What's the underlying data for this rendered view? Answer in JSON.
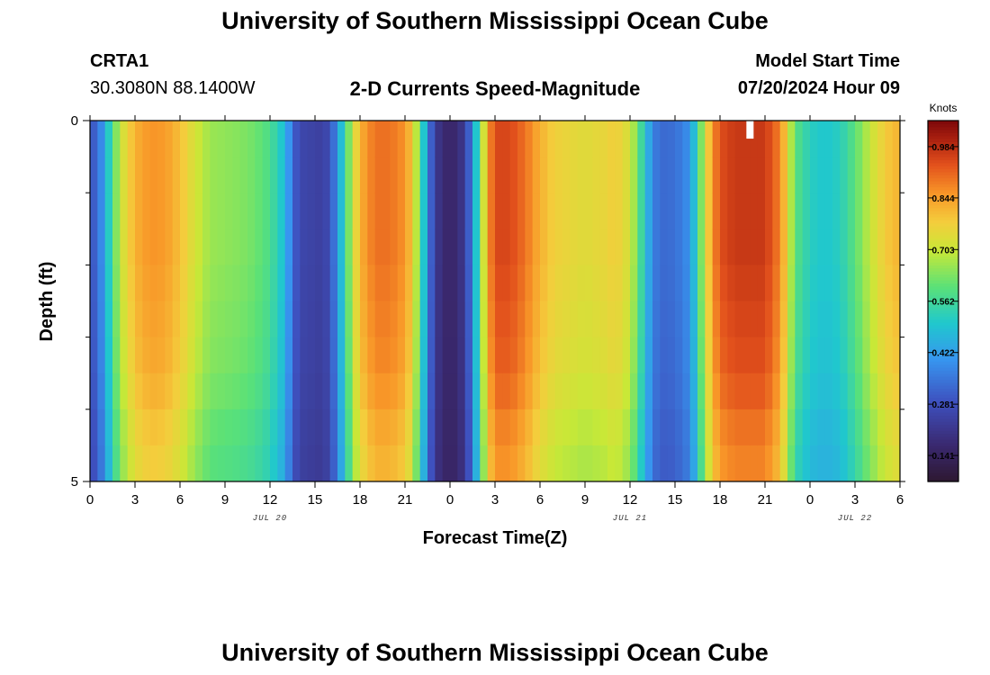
{
  "header": {
    "title": "University of Southern Mississippi Ocean Cube",
    "station_id": "CRTA1",
    "station_coords": "30.3080N  88.1400W",
    "plot_title": "2-D Currents Speed-Magnitude",
    "model_label": "Model Start Time",
    "model_time": "07/20/2024 Hour 09"
  },
  "footer": {
    "title": "University of Southern Mississippi Ocean Cube"
  },
  "chart_data": {
    "type": "heatmap",
    "title": "2-D Currents Speed-Magnitude",
    "xlabel": "Forecast Time(Z)",
    "ylabel": "Depth (ft)",
    "x_unit": "hours since 07/20 00Z",
    "xlim": [
      0,
      54
    ],
    "ylim": [
      0,
      5
    ],
    "x_tick_values": [
      0,
      3,
      6,
      9,
      12,
      15,
      18,
      21,
      24,
      27,
      30,
      33,
      36,
      39,
      42,
      45,
      48,
      51,
      54
    ],
    "x_tick_labels": [
      "0",
      "3",
      "6",
      "9",
      "12",
      "15",
      "18",
      "21",
      "0",
      "3",
      "6",
      "9",
      "12",
      "15",
      "18",
      "21",
      "0",
      "3",
      "6"
    ],
    "day_labels": [
      {
        "text": "JUL 20",
        "x": 12
      },
      {
        "text": "JUL 21",
        "x": 36
      },
      {
        "text": "JUL 22",
        "x": 51
      }
    ],
    "y_tick_labels": [
      {
        "value": 0,
        "label": "0"
      },
      {
        "value": 5,
        "label": "5"
      }
    ],
    "y_minor_ticks": [
      1,
      2,
      3,
      4
    ],
    "colorbar": {
      "label": "Knots",
      "min": 0.07,
      "max": 1.055,
      "ticks": [
        0.141,
        0.281,
        0.422,
        0.562,
        0.703,
        0.844,
        0.984
      ],
      "tick_labels": [
        "0.141",
        "0.281",
        "0.422",
        "0.562",
        "0.703",
        "0.844",
        "0.984"
      ]
    },
    "missing_cell": {
      "x": 44,
      "depth": 0.25
    },
    "time_step_hours": 0.5,
    "depth_levels": 10,
    "key_profile": [
      [
        0,
        0.3
      ],
      [
        0.5,
        0.32
      ],
      [
        1,
        0.45
      ],
      [
        1.5,
        0.58
      ],
      [
        2,
        0.7
      ],
      [
        3,
        0.82
      ],
      [
        4,
        0.86
      ],
      [
        5,
        0.85
      ],
      [
        6,
        0.8
      ],
      [
        7,
        0.72
      ],
      [
        8,
        0.66
      ],
      [
        10,
        0.64
      ],
      [
        11,
        0.62
      ],
      [
        12,
        0.58
      ],
      [
        13,
        0.48
      ],
      [
        13.5,
        0.33
      ],
      [
        14,
        0.26
      ],
      [
        15.5,
        0.24
      ],
      [
        16,
        0.28
      ],
      [
        16.5,
        0.4
      ],
      [
        17,
        0.56
      ],
      [
        17.5,
        0.7
      ],
      [
        18,
        0.82
      ],
      [
        19,
        0.9
      ],
      [
        20,
        0.9
      ],
      [
        21,
        0.86
      ],
      [
        21.5,
        0.78
      ],
      [
        22,
        0.6
      ],
      [
        22.5,
        0.4
      ],
      [
        23,
        0.22
      ],
      [
        24,
        0.15
      ],
      [
        25,
        0.22
      ],
      [
        25.5,
        0.4
      ],
      [
        26,
        0.6
      ],
      [
        26.5,
        0.84
      ],
      [
        27,
        0.95
      ],
      [
        28,
        0.95
      ],
      [
        29,
        0.9
      ],
      [
        30,
        0.82
      ],
      [
        31,
        0.77
      ],
      [
        33,
        0.74
      ],
      [
        34.5,
        0.76
      ],
      [
        35,
        0.78
      ],
      [
        36,
        0.72
      ],
      [
        36.5,
        0.62
      ],
      [
        37,
        0.5
      ],
      [
        37.5,
        0.38
      ],
      [
        38,
        0.33
      ],
      [
        39,
        0.34
      ],
      [
        40,
        0.4
      ],
      [
        40.5,
        0.55
      ],
      [
        41,
        0.72
      ],
      [
        41.5,
        0.86
      ],
      [
        42,
        0.94
      ],
      [
        43,
        0.97
      ],
      [
        45,
        0.97
      ],
      [
        46,
        0.88
      ],
      [
        46.5,
        0.75
      ],
      [
        47,
        0.6
      ],
      [
        48,
        0.52
      ],
      [
        49,
        0.5
      ],
      [
        50,
        0.52
      ],
      [
        51,
        0.6
      ],
      [
        52,
        0.7
      ],
      [
        53,
        0.78
      ],
      [
        54,
        0.82
      ]
    ],
    "depth_attenuation_by_level": [
      1.0,
      1.0,
      1.0,
      1.0,
      0.99,
      0.98,
      0.97,
      0.95,
      0.92,
      0.9
    ]
  }
}
